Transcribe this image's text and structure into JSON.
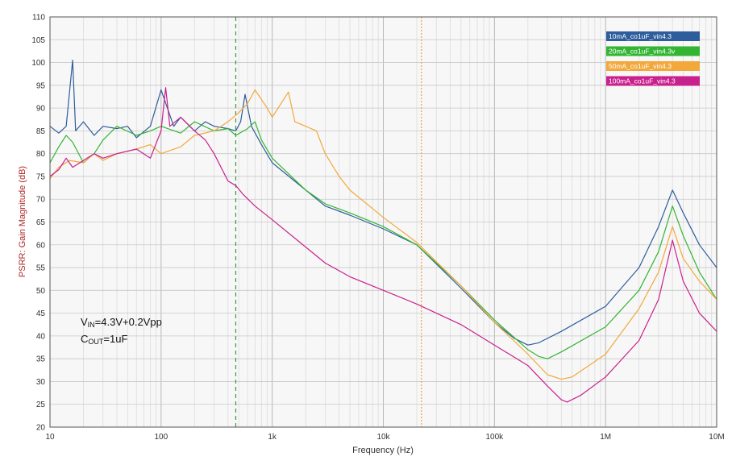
{
  "chart_data": {
    "type": "line",
    "title": "",
    "xlabel": "Frequency (Hz)",
    "ylabel": "PSRR: Gain Magnitude (dB)",
    "xscale": "log",
    "xlim": [
      10,
      10000000
    ],
    "ylim": [
      20,
      110
    ],
    "grid": true,
    "legend_position": "top-right",
    "x_ticks": [
      {
        "value": 10,
        "label": "10"
      },
      {
        "value": 100,
        "label": "100"
      },
      {
        "value": 1000,
        "label": "1k"
      },
      {
        "value": 10000,
        "label": "10k"
      },
      {
        "value": 100000,
        "label": "100k"
      },
      {
        "value": 1000000,
        "label": "1M"
      },
      {
        "value": 10000000,
        "label": "10M"
      }
    ],
    "y_ticks": [
      "20",
      "25",
      "30",
      "35",
      "40",
      "45",
      "50",
      "55",
      "60",
      "65",
      "70",
      "75",
      "80",
      "85",
      "90",
      "95",
      "100",
      "105",
      "110"
    ],
    "markers": [
      {
        "x": 470,
        "color": "#3a9a3a",
        "style": "dashed"
      },
      {
        "x": 22000,
        "color": "#f0a040",
        "style": "dotted"
      }
    ],
    "annotations": {
      "vin_main": "V",
      "vin_sub": "IN",
      "vin_rest": "=4.3V+0.2Vpp",
      "cout_main": "C",
      "cout_sub": "OUT",
      "cout_rest": "=1uF"
    },
    "series": [
      {
        "name": "10mA_co1uF_vin4.3",
        "color": "#2e5d9c",
        "points": [
          [
            10,
            86
          ],
          [
            12,
            84.5
          ],
          [
            14,
            86
          ],
          [
            16,
            100.5
          ],
          [
            17,
            85
          ],
          [
            20,
            87
          ],
          [
            25,
            84
          ],
          [
            30,
            86
          ],
          [
            40,
            85.5
          ],
          [
            50,
            86
          ],
          [
            60,
            83.5
          ],
          [
            80,
            86
          ],
          [
            100,
            94
          ],
          [
            130,
            86
          ],
          [
            150,
            88
          ],
          [
            200,
            85
          ],
          [
            250,
            87
          ],
          [
            300,
            86
          ],
          [
            400,
            85.5
          ],
          [
            470,
            85
          ],
          [
            520,
            87
          ],
          [
            570,
            93
          ],
          [
            650,
            86
          ],
          [
            800,
            82
          ],
          [
            1000,
            78
          ],
          [
            2000,
            72
          ],
          [
            3000,
            68.5
          ],
          [
            5000,
            66.5
          ],
          [
            10000,
            63.5
          ],
          [
            20000,
            60
          ],
          [
            50000,
            50.5
          ],
          [
            100000,
            43
          ],
          [
            150000,
            39.5
          ],
          [
            200000,
            38
          ],
          [
            250000,
            38.5
          ],
          [
            400000,
            41
          ],
          [
            1000000,
            46.5
          ],
          [
            2000000,
            55
          ],
          [
            3000000,
            64
          ],
          [
            4000000,
            72
          ],
          [
            5000000,
            67
          ],
          [
            7000000,
            60
          ],
          [
            10000000,
            55
          ]
        ]
      },
      {
        "name": "20mA_co1uF_vin4.3v",
        "color": "#33b533",
        "points": [
          [
            10,
            78
          ],
          [
            12,
            81.5
          ],
          [
            14,
            84
          ],
          [
            16,
            82.5
          ],
          [
            20,
            78
          ],
          [
            25,
            80
          ],
          [
            30,
            83
          ],
          [
            40,
            86
          ],
          [
            60,
            84
          ],
          [
            80,
            85
          ],
          [
            100,
            86
          ],
          [
            150,
            84.5
          ],
          [
            200,
            87
          ],
          [
            300,
            85
          ],
          [
            400,
            85.5
          ],
          [
            470,
            84
          ],
          [
            600,
            85.5
          ],
          [
            700,
            87
          ],
          [
            800,
            83
          ],
          [
            1000,
            79
          ],
          [
            2000,
            72
          ],
          [
            3000,
            69
          ],
          [
            5000,
            67
          ],
          [
            10000,
            64
          ],
          [
            20000,
            60
          ],
          [
            50000,
            51
          ],
          [
            100000,
            43.5
          ],
          [
            200000,
            37
          ],
          [
            250000,
            35.5
          ],
          [
            300000,
            35
          ],
          [
            400000,
            36.5
          ],
          [
            1000000,
            42
          ],
          [
            2000000,
            50
          ],
          [
            3000000,
            58.5
          ],
          [
            4000000,
            68.5
          ],
          [
            5000000,
            62
          ],
          [
            7000000,
            54
          ],
          [
            10000000,
            48
          ]
        ]
      },
      {
        "name": "50mA_co1uF_vin4.3",
        "color": "#f2a83b",
        "points": [
          [
            10,
            74.5
          ],
          [
            12,
            77
          ],
          [
            15,
            78.5
          ],
          [
            20,
            78
          ],
          [
            25,
            80
          ],
          [
            30,
            78.5
          ],
          [
            40,
            80
          ],
          [
            60,
            81
          ],
          [
            80,
            82
          ],
          [
            100,
            80
          ],
          [
            150,
            81.5
          ],
          [
            200,
            84
          ],
          [
            300,
            85
          ],
          [
            400,
            87
          ],
          [
            500,
            89
          ],
          [
            600,
            91
          ],
          [
            700,
            94
          ],
          [
            900,
            90
          ],
          [
            1000,
            88
          ],
          [
            1200,
            91
          ],
          [
            1400,
            93.5
          ],
          [
            1600,
            87
          ],
          [
            2000,
            86
          ],
          [
            2500,
            85
          ],
          [
            3000,
            80
          ],
          [
            4000,
            75
          ],
          [
            5000,
            72
          ],
          [
            10000,
            66
          ],
          [
            20000,
            60.5
          ],
          [
            50000,
            51
          ],
          [
            100000,
            43
          ],
          [
            200000,
            36
          ],
          [
            300000,
            31.5
          ],
          [
            400000,
            30.5
          ],
          [
            500000,
            31
          ],
          [
            1000000,
            36
          ],
          [
            2000000,
            46
          ],
          [
            3000000,
            54
          ],
          [
            4000000,
            64
          ],
          [
            5000000,
            57
          ],
          [
            7000000,
            52
          ],
          [
            10000000,
            48
          ]
        ]
      },
      {
        "name": "100mA_co1uF_vin4.3",
        "color": "#c8218e",
        "points": [
          [
            10,
            75
          ],
          [
            12,
            76.5
          ],
          [
            14,
            79
          ],
          [
            16,
            77
          ],
          [
            20,
            78.5
          ],
          [
            25,
            80
          ],
          [
            30,
            79
          ],
          [
            40,
            80
          ],
          [
            60,
            81
          ],
          [
            80,
            79
          ],
          [
            100,
            85
          ],
          [
            110,
            94.5
          ],
          [
            120,
            86
          ],
          [
            150,
            88
          ],
          [
            200,
            85
          ],
          [
            250,
            83
          ],
          [
            300,
            80
          ],
          [
            400,
            74
          ],
          [
            470,
            73
          ],
          [
            550,
            71
          ],
          [
            700,
            68.5
          ],
          [
            1000,
            65.5
          ],
          [
            2000,
            59.5
          ],
          [
            3000,
            56
          ],
          [
            5000,
            53
          ],
          [
            10000,
            50
          ],
          [
            20000,
            47
          ],
          [
            50000,
            42.5
          ],
          [
            100000,
            38
          ],
          [
            200000,
            33.5
          ],
          [
            300000,
            29
          ],
          [
            400000,
            26
          ],
          [
            450000,
            25.5
          ],
          [
            600000,
            27
          ],
          [
            1000000,
            31
          ],
          [
            2000000,
            39
          ],
          [
            3000000,
            48
          ],
          [
            4000000,
            61
          ],
          [
            5000000,
            52
          ],
          [
            7000000,
            45
          ],
          [
            10000000,
            41
          ]
        ]
      }
    ]
  }
}
